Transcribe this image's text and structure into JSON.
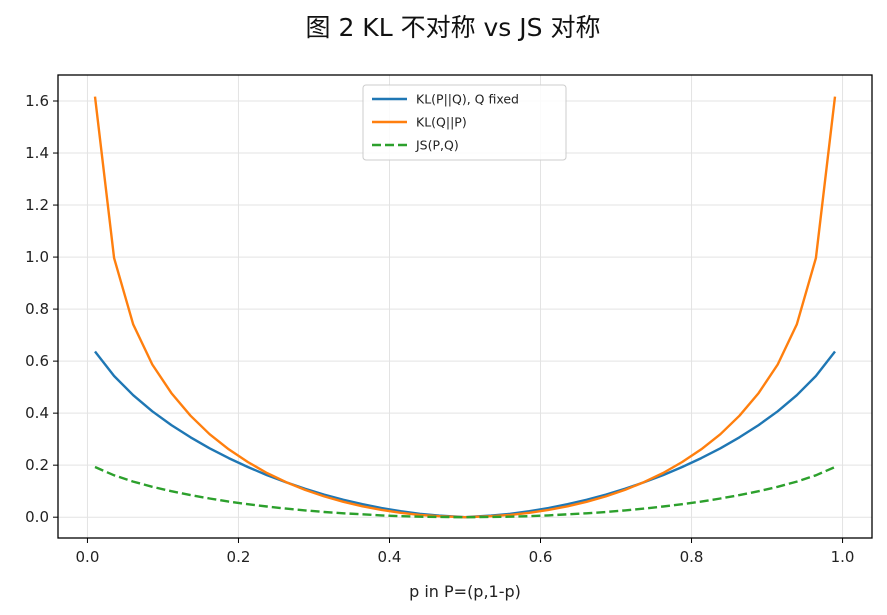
{
  "chart_data": {
    "type": "line",
    "title": "图 2   KL 不对称 vs JS 对称",
    "xlabel": "p in P=(p,1-p)",
    "ylabel": "",
    "xlim": [
      -0.039,
      1.039
    ],
    "ylim": [
      -0.08,
      1.7
    ],
    "grid": true,
    "legend_position": "upper center",
    "xticks": [
      0.0,
      0.2,
      0.4,
      0.6,
      0.8,
      1.0
    ],
    "xtick_labels": [
      "0.0",
      "0.2",
      "0.4",
      "0.6",
      "0.8",
      "1.0"
    ],
    "yticks": [
      0.0,
      0.2,
      0.4,
      0.6,
      0.8,
      1.0,
      1.2,
      1.4,
      1.6
    ],
    "ytick_labels": [
      "0.0",
      "0.2",
      "0.4",
      "0.6",
      "0.8",
      "1.0",
      "1.2",
      "1.4",
      "1.6"
    ],
    "x": [
      0.01,
      0.0353,
      0.0606,
      0.0859,
      0.1112,
      0.1365,
      0.1618,
      0.1871,
      0.2124,
      0.2377,
      0.263,
      0.2883,
      0.3136,
      0.3389,
      0.3642,
      0.3895,
      0.4148,
      0.4401,
      0.4654,
      0.4907,
      0.5,
      0.5093,
      0.5346,
      0.5599,
      0.5852,
      0.6105,
      0.6358,
      0.6611,
      0.6864,
      0.7117,
      0.737,
      0.7623,
      0.7876,
      0.8129,
      0.8382,
      0.8635,
      0.8888,
      0.9141,
      0.9394,
      0.9647,
      0.99
    ],
    "series": [
      {
        "name": "KL(P||Q), Q fixed",
        "color": "#1f77b4",
        "style": "solid",
        "values": [
          0.637,
          0.543,
          0.469,
          0.407,
          0.354,
          0.307,
          0.265,
          0.227,
          0.193,
          0.162,
          0.134,
          0.109,
          0.087,
          0.067,
          0.05,
          0.035,
          0.023,
          0.013,
          0.006,
          0.002,
          0.0,
          0.002,
          0.006,
          0.013,
          0.023,
          0.035,
          0.05,
          0.067,
          0.087,
          0.109,
          0.134,
          0.162,
          0.193,
          0.227,
          0.265,
          0.307,
          0.354,
          0.407,
          0.469,
          0.543,
          0.637
        ]
      },
      {
        "name": "KL(Q||P)",
        "color": "#ff7f0e",
        "style": "solid",
        "values": [
          1.617,
          0.996,
          0.741,
          0.587,
          0.477,
          0.39,
          0.319,
          0.261,
          0.212,
          0.17,
          0.135,
          0.105,
          0.08,
          0.059,
          0.042,
          0.028,
          0.017,
          0.009,
          0.004,
          0.001,
          0.0,
          0.001,
          0.004,
          0.009,
          0.017,
          0.028,
          0.042,
          0.059,
          0.08,
          0.105,
          0.135,
          0.17,
          0.212,
          0.261,
          0.319,
          0.39,
          0.477,
          0.587,
          0.741,
          0.996,
          1.617
        ]
      },
      {
        "name": "JS(P,Q)",
        "color": "#2ca02c",
        "style": "dashed",
        "values": [
          0.193,
          0.161,
          0.137,
          0.117,
          0.1,
          0.085,
          0.072,
          0.06,
          0.05,
          0.041,
          0.033,
          0.026,
          0.02,
          0.015,
          0.011,
          0.007,
          0.004,
          0.002,
          0.001,
          0.0,
          0.0,
          0.0,
          0.001,
          0.002,
          0.004,
          0.007,
          0.011,
          0.015,
          0.02,
          0.026,
          0.033,
          0.041,
          0.05,
          0.06,
          0.072,
          0.085,
          0.1,
          0.117,
          0.137,
          0.161,
          0.193
        ]
      }
    ]
  }
}
